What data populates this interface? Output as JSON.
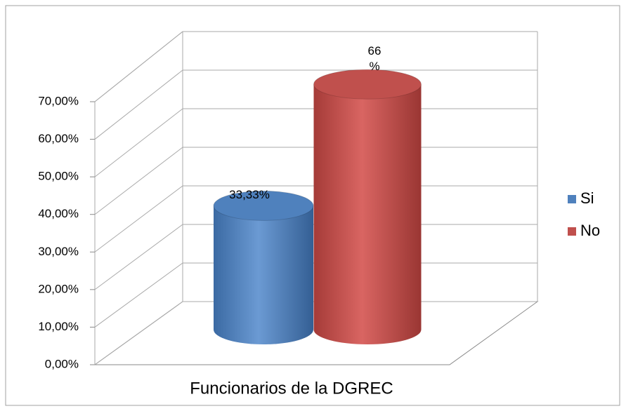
{
  "chart_data": {
    "type": "bar3d",
    "categories": [
      "Funcionarios de la DGREC"
    ],
    "series": [
      {
        "name": "Si",
        "color": "#4f81bd",
        "values": [
          33.33
        ],
        "value_labels": [
          "33,33%"
        ]
      },
      {
        "name": "No",
        "color": "#c0504d",
        "values": [
          66
        ],
        "value_labels": [
          "66 %"
        ]
      }
    ],
    "ylim": [
      0,
      70
    ],
    "yticks": [
      {
        "value": 0,
        "label": "0,00%"
      },
      {
        "value": 10,
        "label": "10,00%"
      },
      {
        "value": 20,
        "label": "20,00%"
      },
      {
        "value": 30,
        "label": "30,00%"
      },
      {
        "value": 40,
        "label": "40,00%"
      },
      {
        "value": 50,
        "label": "50,00%"
      },
      {
        "value": 60,
        "label": "60,00%"
      },
      {
        "value": 70,
        "label": "70,00%"
      }
    ],
    "grid": true,
    "legend": "right"
  }
}
